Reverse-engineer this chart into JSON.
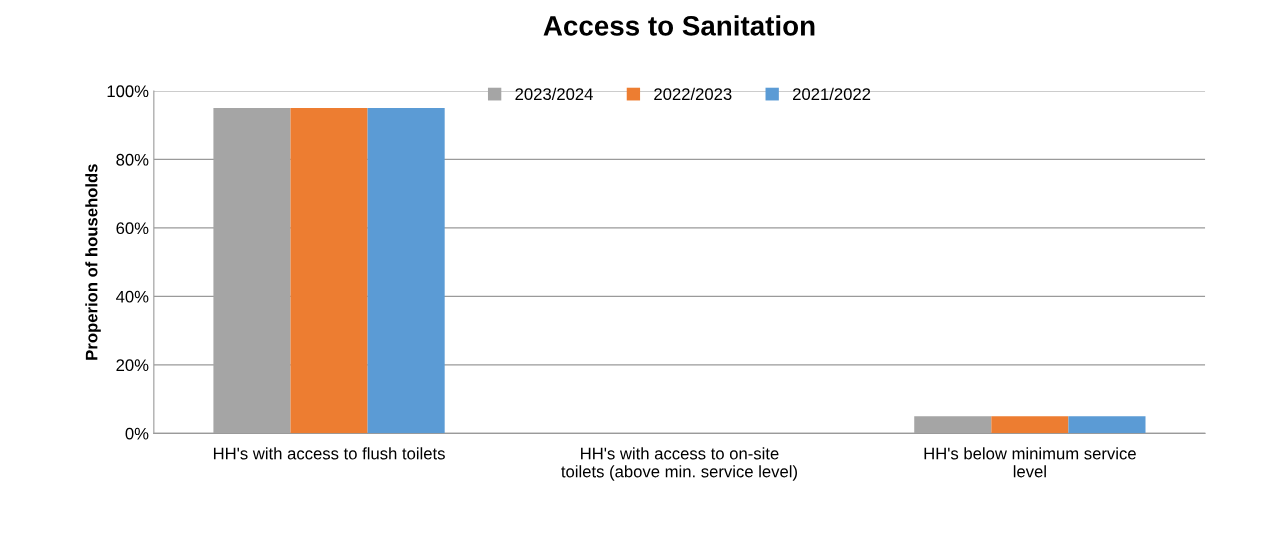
{
  "chart_data": {
    "type": "bar",
    "title": "Access to Sanitation",
    "ylabel": "Properion of households",
    "categories": [
      "HH's with access to flush toilets",
      "HH's with access to on-site\ntoilets (above min. service level)",
      "HH's below minimum service\nlevel"
    ],
    "series": [
      {
        "name": "2023/2024",
        "color": "#a5a5a5",
        "values": [
          95,
          0,
          5
        ]
      },
      {
        "name": "2022/2023",
        "color": "#ed7d31",
        "values": [
          95,
          0,
          5
        ]
      },
      {
        "name": "2021/2022",
        "color": "#5b9bd5",
        "values": [
          95,
          0,
          5
        ]
      }
    ],
    "ylim": [
      0,
      100
    ],
    "yticks": [
      {
        "value": 0,
        "label": "0%"
      },
      {
        "value": 20,
        "label": "20%"
      },
      {
        "value": 40,
        "label": "40%"
      },
      {
        "value": 60,
        "label": "60%"
      },
      {
        "value": 80,
        "label": "80%"
      },
      {
        "value": 100,
        "label": "100%"
      }
    ],
    "grid": "y",
    "legend": "top"
  }
}
